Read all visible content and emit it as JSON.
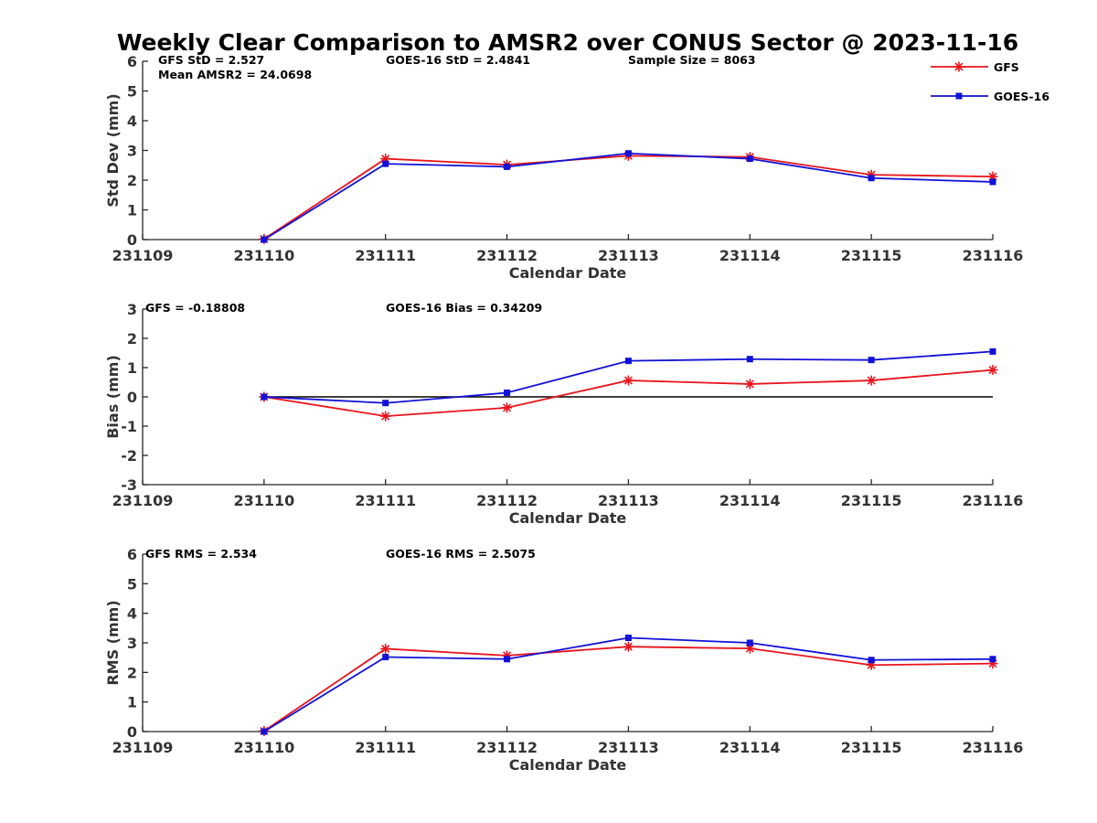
{
  "title": "Weekly Clear Comparison to AMSR2 over CONUS Sector @ 2023-11-16",
  "legend": {
    "placement": "top-right",
    "entries": [
      {
        "label": "GFS",
        "color": "#e8141c",
        "marker": "asterisk"
      },
      {
        "label": "GOES-16",
        "color": "#1111d8",
        "marker": "square"
      }
    ]
  },
  "chart_data": [
    {
      "type": "line",
      "xlabel": "Calendar Date",
      "ylabel": "Std Dev (mm)",
      "x_ticks": [
        "231109",
        "231110",
        "231111",
        "231112",
        "231113",
        "231114",
        "231115",
        "231116"
      ],
      "xlim": [
        "231109",
        "231116"
      ],
      "ylim": [
        0,
        6
      ],
      "y_ticks": [
        "0",
        "1",
        "2",
        "3",
        "4",
        "5",
        "6"
      ],
      "grid": false,
      "zero_line": false,
      "annotations": [
        "GFS StD = 2.527",
        "Mean AMSR2 = 24.0698",
        "GOES-16 StD = 2.4841",
        "Sample Size = 8063"
      ],
      "series": [
        {
          "name": "GFS",
          "color": "#e8141c",
          "marker": "asterisk",
          "x": [
            "231110",
            "231111",
            "231112",
            "231113",
            "231114",
            "231115",
            "231116"
          ],
          "values": [
            0.02,
            2.72,
            2.52,
            2.82,
            2.78,
            2.18,
            2.12
          ]
        },
        {
          "name": "GOES-16",
          "color": "#1111d8",
          "marker": "square",
          "x": [
            "231110",
            "231111",
            "231112",
            "231113",
            "231114",
            "231115",
            "231116"
          ],
          "values": [
            0.0,
            2.55,
            2.45,
            2.9,
            2.72,
            2.07,
            1.94
          ]
        }
      ]
    },
    {
      "type": "line",
      "xlabel": "Calendar Date",
      "ylabel": "Bias (mm)",
      "x_ticks": [
        "231109",
        "231110",
        "231111",
        "231112",
        "231113",
        "231114",
        "231115",
        "231116"
      ],
      "xlim": [
        "231109",
        "231116"
      ],
      "ylim": [
        -3,
        3
      ],
      "y_ticks": [
        "-3",
        "-2",
        "-1",
        "0",
        "1",
        "2",
        "3"
      ],
      "grid": false,
      "zero_line": true,
      "annotations": [
        "GFS = -0.18808",
        "GOES-16 Bias  = 0.34209"
      ],
      "series": [
        {
          "name": "GFS",
          "color": "#e8141c",
          "marker": "asterisk",
          "x": [
            "231110",
            "231111",
            "231112",
            "231113",
            "231114",
            "231115",
            "231116"
          ],
          "values": [
            0.0,
            -0.66,
            -0.37,
            0.56,
            0.44,
            0.56,
            0.92
          ]
        },
        {
          "name": "GOES-16",
          "color": "#1111d8",
          "marker": "square",
          "x": [
            "231110",
            "231111",
            "231112",
            "231113",
            "231114",
            "231115",
            "231116"
          ],
          "values": [
            0.0,
            -0.21,
            0.14,
            1.23,
            1.29,
            1.26,
            1.55
          ]
        }
      ]
    },
    {
      "type": "line",
      "xlabel": "Calendar Date",
      "ylabel": "RMS (mm)",
      "x_ticks": [
        "231109",
        "231110",
        "231111",
        "231112",
        "231113",
        "231114",
        "231115",
        "231116"
      ],
      "xlim": [
        "231109",
        "231116"
      ],
      "ylim": [
        0,
        6
      ],
      "y_ticks": [
        "0",
        "1",
        "2",
        "3",
        "4",
        "5",
        "6"
      ],
      "grid": false,
      "zero_line": false,
      "annotations": [
        "GFS RMS = 2.534",
        "GOES-16 RMS = 2.5075"
      ],
      "series": [
        {
          "name": "GFS",
          "color": "#e8141c",
          "marker": "asterisk",
          "x": [
            "231110",
            "231111",
            "231112",
            "231113",
            "231114",
            "231115",
            "231116"
          ],
          "values": [
            0.02,
            2.8,
            2.57,
            2.87,
            2.81,
            2.25,
            2.3
          ]
        },
        {
          "name": "GOES-16",
          "color": "#1111d8",
          "marker": "square",
          "x": [
            "231110",
            "231111",
            "231112",
            "231113",
            "231114",
            "231115",
            "231116"
          ],
          "values": [
            0.0,
            2.52,
            2.45,
            3.17,
            3.0,
            2.42,
            2.45
          ]
        }
      ]
    }
  ]
}
